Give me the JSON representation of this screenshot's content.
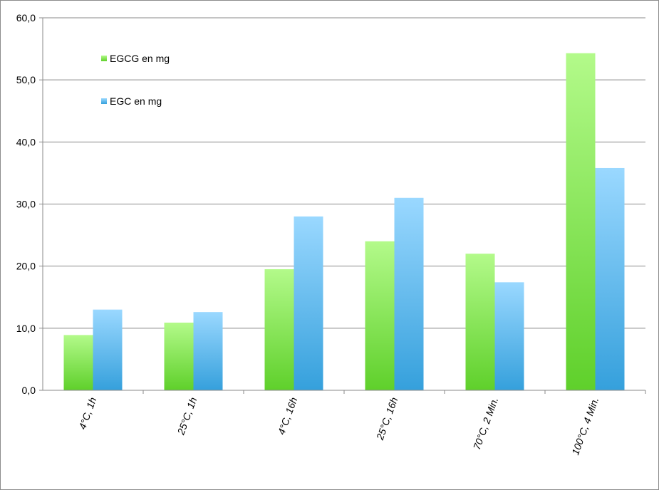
{
  "chart_data": {
    "type": "bar",
    "categories": [
      "4°C, 1h",
      "25°C, 1h",
      "4°C, 16h",
      "25°C, 16h",
      "70°C, 2 Min.",
      "100°C, 4 Min."
    ],
    "series": [
      {
        "name": "EGCG en mg",
        "values": [
          8.9,
          10.9,
          19.5,
          24.0,
          22.0,
          54.3
        ],
        "color_top": "#b3fa8a",
        "color_bottom": "#5fd02b"
      },
      {
        "name": "EGC en mg",
        "values": [
          13.0,
          12.6,
          28.0,
          31.0,
          17.4,
          35.8
        ],
        "color_top": "#9ad8ff",
        "color_bottom": "#35a0dc"
      }
    ],
    "ylim": [
      0,
      60
    ],
    "yticks": [
      "0,0",
      "10,0",
      "20,0",
      "30,0",
      "40,0",
      "50,0",
      "60,0"
    ],
    "xlabel": "",
    "ylabel": "",
    "title": "",
    "grid": true,
    "legend_position": "top-left"
  }
}
